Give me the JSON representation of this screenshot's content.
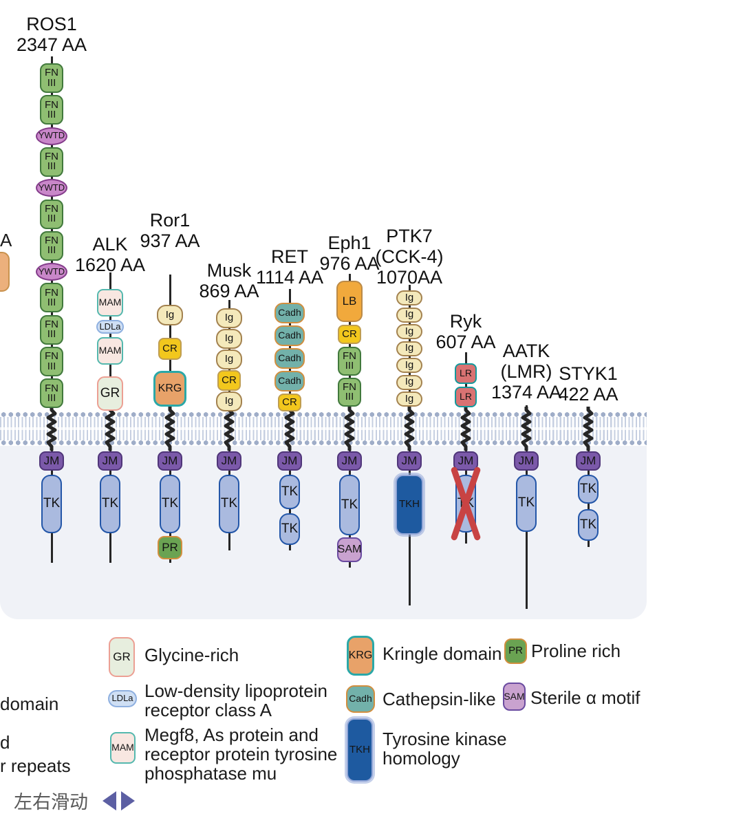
{
  "palette": {
    "line": "#262626",
    "panel_bg": "#f0f2f7",
    "membrane_head": "#9fadc8",
    "membrane_tail": "#c6cfe1",
    "x_mark": "#c84343",
    "arrow": "#5c5fa3",
    "hint_text": "#5a5a5a",
    "domains": {
      "FNIII": {
        "fill": "#8fbe72",
        "border": "#41793c"
      },
      "YWTD": {
        "fill": "#c987c9",
        "border": "#833b8a"
      },
      "MAM": {
        "fill": "#f8e7e1",
        "border": "#54b8ae"
      },
      "LDLa": {
        "fill": "#cfdff4",
        "border": "#8fb0e0"
      },
      "GR": {
        "fill": "#e7eede",
        "border": "#ec9f93"
      },
      "Ig": {
        "fill": "#f4e9bb",
        "border": "#a3824f"
      },
      "CR": {
        "fill": "#f2c71d",
        "border": "#bf9d50"
      },
      "KRG": {
        "fill": "#e8a269",
        "border": "#2aa8a8"
      },
      "Cadh": {
        "fill": "#72b1aa",
        "border": "#d28e3e"
      },
      "LB": {
        "fill": "#f1a93c",
        "border": "#bb8a47"
      },
      "LR": {
        "fill": "#d97272",
        "border": "#12999c"
      },
      "JM": {
        "fill": "#7b59a9",
        "border": "#4f3579"
      },
      "TK": {
        "fill": "#aabadf",
        "border": "#2356a8"
      },
      "TKH": {
        "fill": "#1e5aa0",
        "border": "#93a7d8"
      },
      "PR": {
        "fill": "#6aa352",
        "border": "#d28e3e"
      },
      "SAM": {
        "fill": "#c9a2cf",
        "border": "#6a4ba0"
      },
      "CLIP": {
        "fill": "#ecb07c",
        "border": "#c9924e"
      }
    }
  },
  "proteins": [
    {
      "id": "ROS1",
      "title_lines": [
        "ROS1",
        "2347 AA"
      ],
      "ecd": [
        {
          "type": "FNIII",
          "label": [
            "FN",
            "III"
          ]
        },
        {
          "type": "FNIII",
          "label": [
            "FN",
            "III"
          ]
        },
        {
          "type": "YWTD",
          "label": [
            "YWTD"
          ]
        },
        {
          "type": "FNIII",
          "label": [
            "FN",
            "III"
          ]
        },
        {
          "type": "YWTD",
          "label": [
            "YWTD"
          ]
        },
        {
          "type": "FNIII",
          "label": [
            "FN",
            "III"
          ]
        },
        {
          "type": "FNIII",
          "label": [
            "FN",
            "III"
          ]
        },
        {
          "type": "YWTD",
          "label": [
            "YWTD"
          ]
        },
        {
          "type": "FNIII",
          "label": [
            "FN",
            "III"
          ]
        },
        {
          "type": "FNIII",
          "label": [
            "FN",
            "III"
          ]
        },
        {
          "type": "FNIII",
          "label": [
            "FN",
            "III"
          ]
        },
        {
          "type": "FNIII",
          "label": [
            "FN",
            "III"
          ]
        }
      ],
      "icd": [
        {
          "type": "JM",
          "label": [
            "JM"
          ]
        },
        {
          "type": "TK",
          "label": [
            "TK"
          ]
        }
      ]
    },
    {
      "id": "ALK",
      "title_lines": [
        "ALK",
        "1620 AA"
      ],
      "ecd": [
        {
          "type": "MAM",
          "label": [
            "MAM"
          ]
        },
        {
          "type": "LDLa",
          "label": [
            "LDLa"
          ]
        },
        {
          "type": "MAM",
          "label": [
            "MAM"
          ]
        },
        {
          "type": "GR",
          "label": [
            "GR"
          ]
        }
      ],
      "icd": [
        {
          "type": "JM",
          "label": [
            "JM"
          ]
        },
        {
          "type": "TK",
          "label": [
            "TK"
          ]
        }
      ]
    },
    {
      "id": "Ror1",
      "title_lines": [
        "Ror1",
        "937 AA"
      ],
      "ecd": [
        {
          "type": "Ig",
          "label": [
            "Ig"
          ]
        },
        {
          "type": "CR",
          "label": [
            "CR"
          ]
        },
        {
          "type": "KRG",
          "label": [
            "KRG"
          ]
        }
      ],
      "icd": [
        {
          "type": "JM",
          "label": [
            "JM"
          ]
        },
        {
          "type": "TK",
          "label": [
            "TK"
          ]
        },
        {
          "type": "PR",
          "label": [
            "PR"
          ]
        }
      ]
    },
    {
      "id": "Musk",
      "title_lines": [
        "Musk",
        "869 AA"
      ],
      "ecd": [
        {
          "type": "Ig",
          "label": [
            "Ig"
          ]
        },
        {
          "type": "Ig",
          "label": [
            "Ig"
          ]
        },
        {
          "type": "Ig",
          "label": [
            "Ig"
          ]
        },
        {
          "type": "CR",
          "label": [
            "CR"
          ]
        },
        {
          "type": "Ig",
          "label": [
            "Ig"
          ]
        }
      ],
      "icd": [
        {
          "type": "JM",
          "label": [
            "JM"
          ]
        },
        {
          "type": "TK",
          "label": [
            "TK"
          ]
        }
      ]
    },
    {
      "id": "RET",
      "title_lines": [
        "RET",
        "1114 AA"
      ],
      "ecd": [
        {
          "type": "Cadh",
          "label": [
            "Cadh"
          ]
        },
        {
          "type": "Cadh",
          "label": [
            "Cadh"
          ]
        },
        {
          "type": "Cadh",
          "label": [
            "Cadh"
          ]
        },
        {
          "type": "Cadh",
          "label": [
            "Cadh"
          ]
        },
        {
          "type": "CR",
          "label": [
            "CR"
          ]
        }
      ],
      "icd": [
        {
          "type": "JM",
          "label": [
            "JM"
          ]
        },
        {
          "type": "TK",
          "label": [
            "TK"
          ]
        },
        {
          "type": "TK",
          "label": [
            "TK"
          ]
        }
      ]
    },
    {
      "id": "Eph1",
      "title_lines": [
        "Eph1",
        "976 AA"
      ],
      "ecd": [
        {
          "type": "LB",
          "label": [
            "LB"
          ]
        },
        {
          "type": "CR",
          "label": [
            "CR"
          ]
        },
        {
          "type": "FNIII",
          "label": [
            "FN",
            "III"
          ]
        },
        {
          "type": "FNIII",
          "label": [
            "FN",
            "III"
          ]
        }
      ],
      "icd": [
        {
          "type": "JM",
          "label": [
            "JM"
          ]
        },
        {
          "type": "TK",
          "label": [
            "TK"
          ]
        },
        {
          "type": "SAM",
          "label": [
            "SAM"
          ]
        }
      ]
    },
    {
      "id": "PTK7",
      "title_lines": [
        "PTK7",
        "(CCK-4)",
        "1070AA"
      ],
      "ecd": [
        {
          "type": "Ig",
          "label": [
            "Ig"
          ]
        },
        {
          "type": "Ig",
          "label": [
            "Ig"
          ]
        },
        {
          "type": "Ig",
          "label": [
            "Ig"
          ]
        },
        {
          "type": "Ig",
          "label": [
            "Ig"
          ]
        },
        {
          "type": "Ig",
          "label": [
            "Ig"
          ]
        },
        {
          "type": "Ig",
          "label": [
            "Ig"
          ]
        },
        {
          "type": "Ig",
          "label": [
            "Ig"
          ]
        }
      ],
      "icd": [
        {
          "type": "JM",
          "label": [
            "JM"
          ]
        },
        {
          "type": "TKH",
          "label": [
            "TKH"
          ]
        }
      ]
    },
    {
      "id": "Ryk",
      "title_lines": [
        "Ryk",
        "607 AA"
      ],
      "ecd": [
        {
          "type": "LR",
          "label": [
            "LR"
          ]
        },
        {
          "type": "LR",
          "label": [
            "LR"
          ]
        }
      ],
      "icd": [
        {
          "type": "JM",
          "label": [
            "JM"
          ]
        },
        {
          "type": "TK",
          "label": [
            "TK"
          ],
          "crossed": true
        }
      ]
    },
    {
      "id": "AATK",
      "title_lines": [
        "AATK",
        "(LMR)",
        "1374 AA"
      ],
      "ecd": [],
      "icd": [
        {
          "type": "JM",
          "label": [
            "JM"
          ]
        },
        {
          "type": "TK",
          "label": [
            "TK"
          ]
        }
      ]
    },
    {
      "id": "STYK1",
      "title_lines": [
        "STYK1",
        "422 AA"
      ],
      "ecd": [],
      "icd": [
        {
          "type": "JM",
          "label": [
            "JM"
          ]
        },
        {
          "type": "TK",
          "label": [
            "TK"
          ]
        },
        {
          "type": "TK",
          "label": [
            "TK"
          ]
        }
      ]
    }
  ],
  "legend": {
    "items": [
      {
        "badge": "GR",
        "type": "GR",
        "label_lines": [
          "Glycine-rich"
        ]
      },
      {
        "badge": "LDLa",
        "type": "LDLa",
        "label_lines": [
          "Low-density lipoprotein",
          "receptor class A"
        ]
      },
      {
        "badge": "MAM",
        "type": "MAM",
        "label_lines": [
          "Megf8, As protein and",
          "receptor protein tyrosine",
          "phosphatase mu"
        ]
      },
      {
        "badge": "KRG",
        "type": "KRG",
        "label_lines": [
          "Kringle domain"
        ]
      },
      {
        "badge": "Cadh",
        "type": "Cadh",
        "label_lines": [
          "Cathepsin-like"
        ]
      },
      {
        "badge": "TKH",
        "type": "TKH",
        "label_lines": [
          "Tyrosine kinase",
          "homology"
        ]
      },
      {
        "badge": "PR",
        "type": "PR",
        "label_lines": [
          "Proline rich"
        ]
      },
      {
        "badge": "SAM",
        "type": "SAM",
        "label_lines": [
          "Sterile α motif"
        ]
      }
    ],
    "clipped_labels": [
      "domain",
      "d",
      "r repeats"
    ]
  },
  "clipped_protein": {
    "title_fragment": "A"
  },
  "scroll_hint": {
    "text": "左右滑动"
  }
}
